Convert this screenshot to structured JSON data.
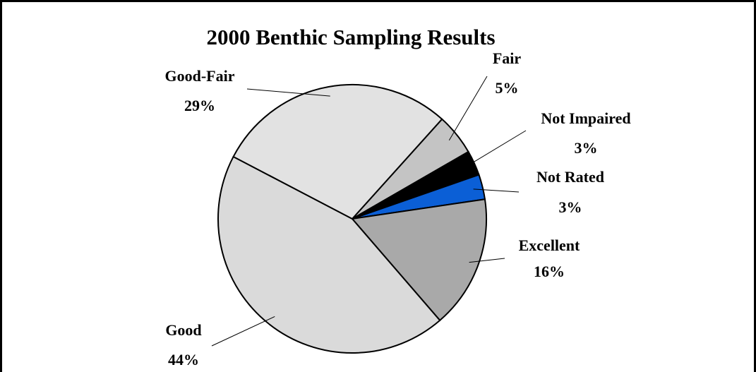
{
  "chart_data": {
    "type": "pie",
    "title": "2000 Benthic Sampling Results",
    "categories": [
      "Fair",
      "Not Impaired",
      "Not Rated",
      "Excellent",
      "Good",
      "Good-Fair"
    ],
    "values": [
      5,
      3,
      3,
      16,
      44,
      29
    ],
    "value_labels": [
      "5%",
      "3%",
      "3%",
      "16%",
      "44%",
      "29%"
    ],
    "colors": [
      "#c4c4c4",
      "#000000",
      "#0b5fd6",
      "#a9a9a9",
      "#dadada",
      "#e2e2e2"
    ]
  }
}
